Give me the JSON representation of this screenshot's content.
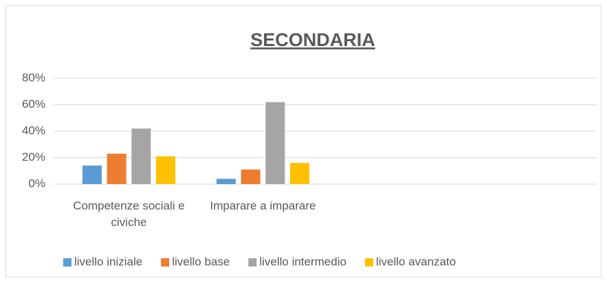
{
  "chart_data": {
    "type": "bar",
    "title": "SECONDARIA",
    "categories": [
      "Competenze sociali e civiche",
      "Imparare a imparare",
      null,
      null
    ],
    "series": [
      {
        "name": "livello iniziale",
        "color": "#5b9bd5",
        "values": [
          14,
          4,
          null,
          null
        ]
      },
      {
        "name": "livello base",
        "color": "#ed7d31",
        "values": [
          23,
          11,
          null,
          null
        ]
      },
      {
        "name": "livello intermedio",
        "color": "#a5a5a5",
        "values": [
          42,
          62,
          null,
          null
        ]
      },
      {
        "name": "livello avanzato",
        "color": "#ffc000",
        "values": [
          21,
          16,
          null,
          null
        ]
      }
    ],
    "ylim": [
      0,
      80
    ],
    "yticks": [
      {
        "value": 0,
        "label": "0%"
      },
      {
        "value": 20,
        "label": "20%"
      },
      {
        "value": 40,
        "label": "40%"
      },
      {
        "value": 60,
        "label": "60%"
      },
      {
        "value": 80,
        "label": "80%"
      }
    ],
    "grid": true,
    "legend": "bottom"
  }
}
